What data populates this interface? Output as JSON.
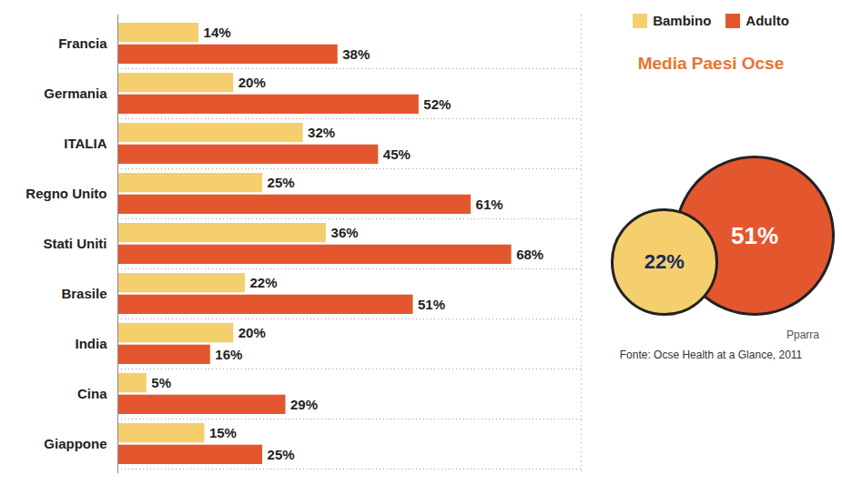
{
  "chart_data": {
    "type": "bar",
    "orientation": "horizontal",
    "categories": [
      "Francia",
      "Germania",
      "ITALIA",
      "Regno Unito",
      "Stati Uniti",
      "Brasile",
      "India",
      "Cina",
      "Giappone"
    ],
    "series": [
      {
        "name": "Bambino",
        "color": "#f5cf6e",
        "values": [
          14,
          20,
          32,
          25,
          36,
          22,
          20,
          5,
          15
        ],
        "value_labels": [
          "14%",
          "20%",
          "32%",
          "25%",
          "36%",
          "22%",
          "20%",
          "5%",
          "15%"
        ]
      },
      {
        "name": "Adulto",
        "color": "#e4572e",
        "values": [
          38,
          52,
          45,
          61,
          68,
          51,
          16,
          29,
          25
        ],
        "value_labels": [
          "38%",
          "52%",
          "45%",
          "61%",
          "68%",
          "51%",
          "16%",
          "29%",
          "25%"
        ]
      }
    ],
    "xlim": [
      0,
      80
    ],
    "xticks": [],
    "tick_labels": "y",
    "data_labels": true,
    "legend": "top-right",
    "annotation": {
      "title": "Media Paesi Ocse",
      "values": [
        22,
        51
      ],
      "value_labels": [
        "22%",
        "51%"
      ]
    },
    "credit": "Pparra",
    "source": "Fonte: Ocse Health at a Glance, 2011"
  }
}
